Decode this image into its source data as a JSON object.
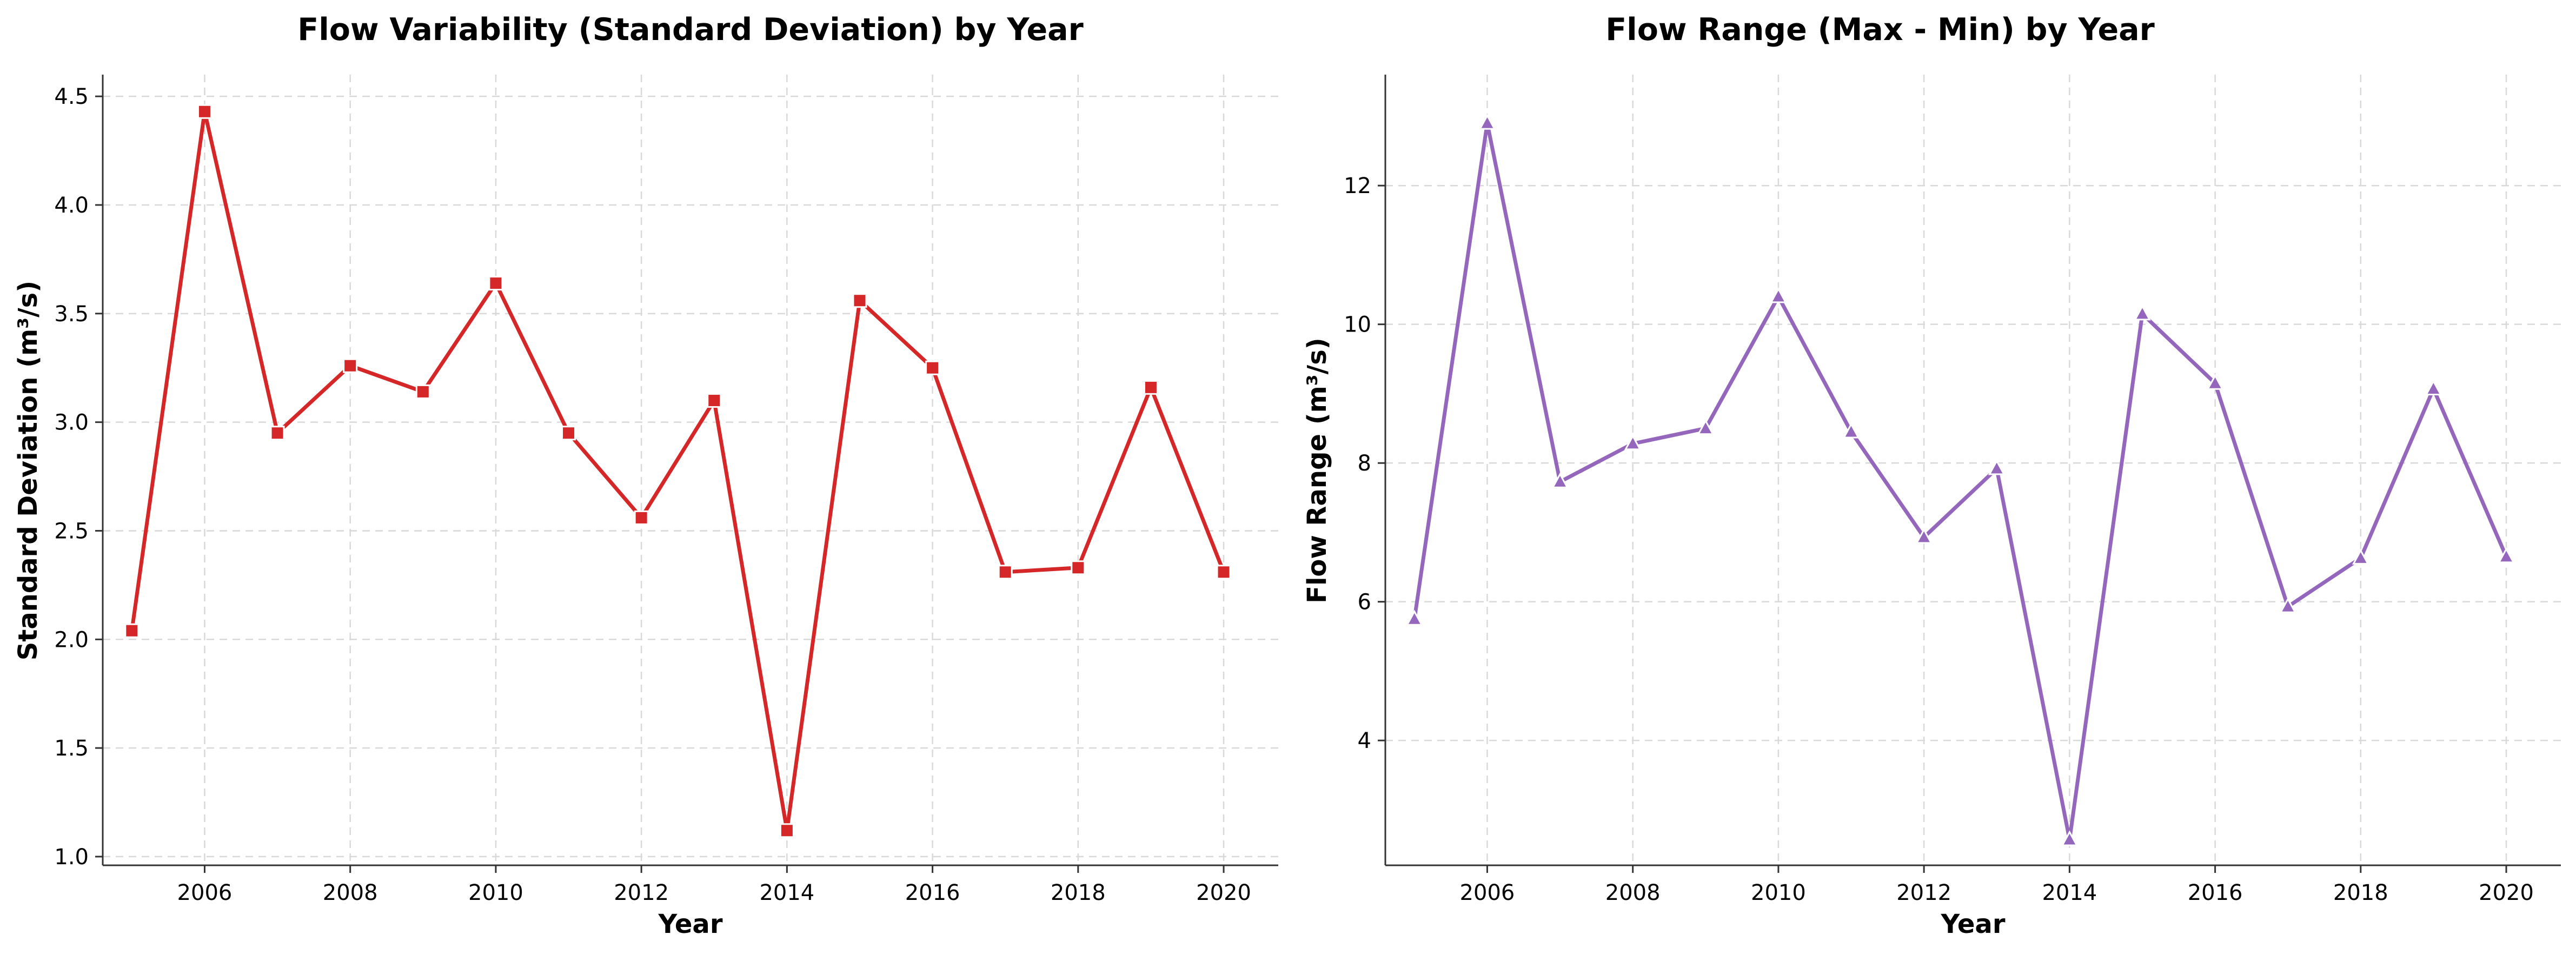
{
  "chart_data": [
    {
      "type": "line",
      "title": "Flow Variability (Standard Deviation) by Year",
      "xlabel": "Year",
      "ylabel": "Standard Deviation (m³/s)",
      "x": [
        2005,
        2006,
        2007,
        2008,
        2009,
        2010,
        2011,
        2012,
        2013,
        2014,
        2015,
        2016,
        2017,
        2018,
        2019,
        2020
      ],
      "series": [
        {
          "values": [
            2.04,
            4.43,
            2.95,
            3.26,
            3.14,
            3.64,
            2.95,
            2.56,
            3.1,
            1.12,
            3.56,
            3.25,
            2.31,
            2.33,
            3.16,
            2.31
          ],
          "color": "#d62728",
          "marker": "square"
        }
      ],
      "xticks": [
        "2006",
        "2008",
        "2010",
        "2012",
        "2014",
        "2016",
        "2018",
        "2020"
      ],
      "yticks": [
        "1.0",
        "1.5",
        "2.0",
        "2.5",
        "3.0",
        "3.5",
        "4.0",
        "4.5"
      ],
      "xlim": [
        2004.6,
        2020.75
      ],
      "ylim": [
        0.96,
        4.6
      ],
      "grid": true,
      "grid_style": "dashed",
      "spines": "left-bottom"
    },
    {
      "type": "line",
      "title": "Flow Range (Max - Min) by Year",
      "xlabel": "Year",
      "ylabel": "Flow Range (m³/s)",
      "x": [
        2005,
        2006,
        2007,
        2008,
        2009,
        2010,
        2011,
        2012,
        2013,
        2014,
        2015,
        2016,
        2017,
        2018,
        2019,
        2020
      ],
      "series": [
        {
          "values": [
            5.75,
            12.9,
            7.73,
            8.28,
            8.5,
            10.4,
            8.45,
            6.93,
            7.92,
            2.57,
            10.15,
            9.15,
            5.93,
            6.63,
            9.07,
            6.65
          ],
          "color": "#9467bd",
          "marker": "triangle"
        }
      ],
      "xticks": [
        "2006",
        "2008",
        "2010",
        "2012",
        "2014",
        "2016",
        "2018",
        "2020"
      ],
      "yticks": [
        "4",
        "6",
        "8",
        "10",
        "12"
      ],
      "xlim": [
        2004.6,
        2020.75
      ],
      "ylim": [
        2.2,
        13.6
      ],
      "grid": true,
      "grid_style": "dashed",
      "spines": "left-bottom"
    }
  ]
}
